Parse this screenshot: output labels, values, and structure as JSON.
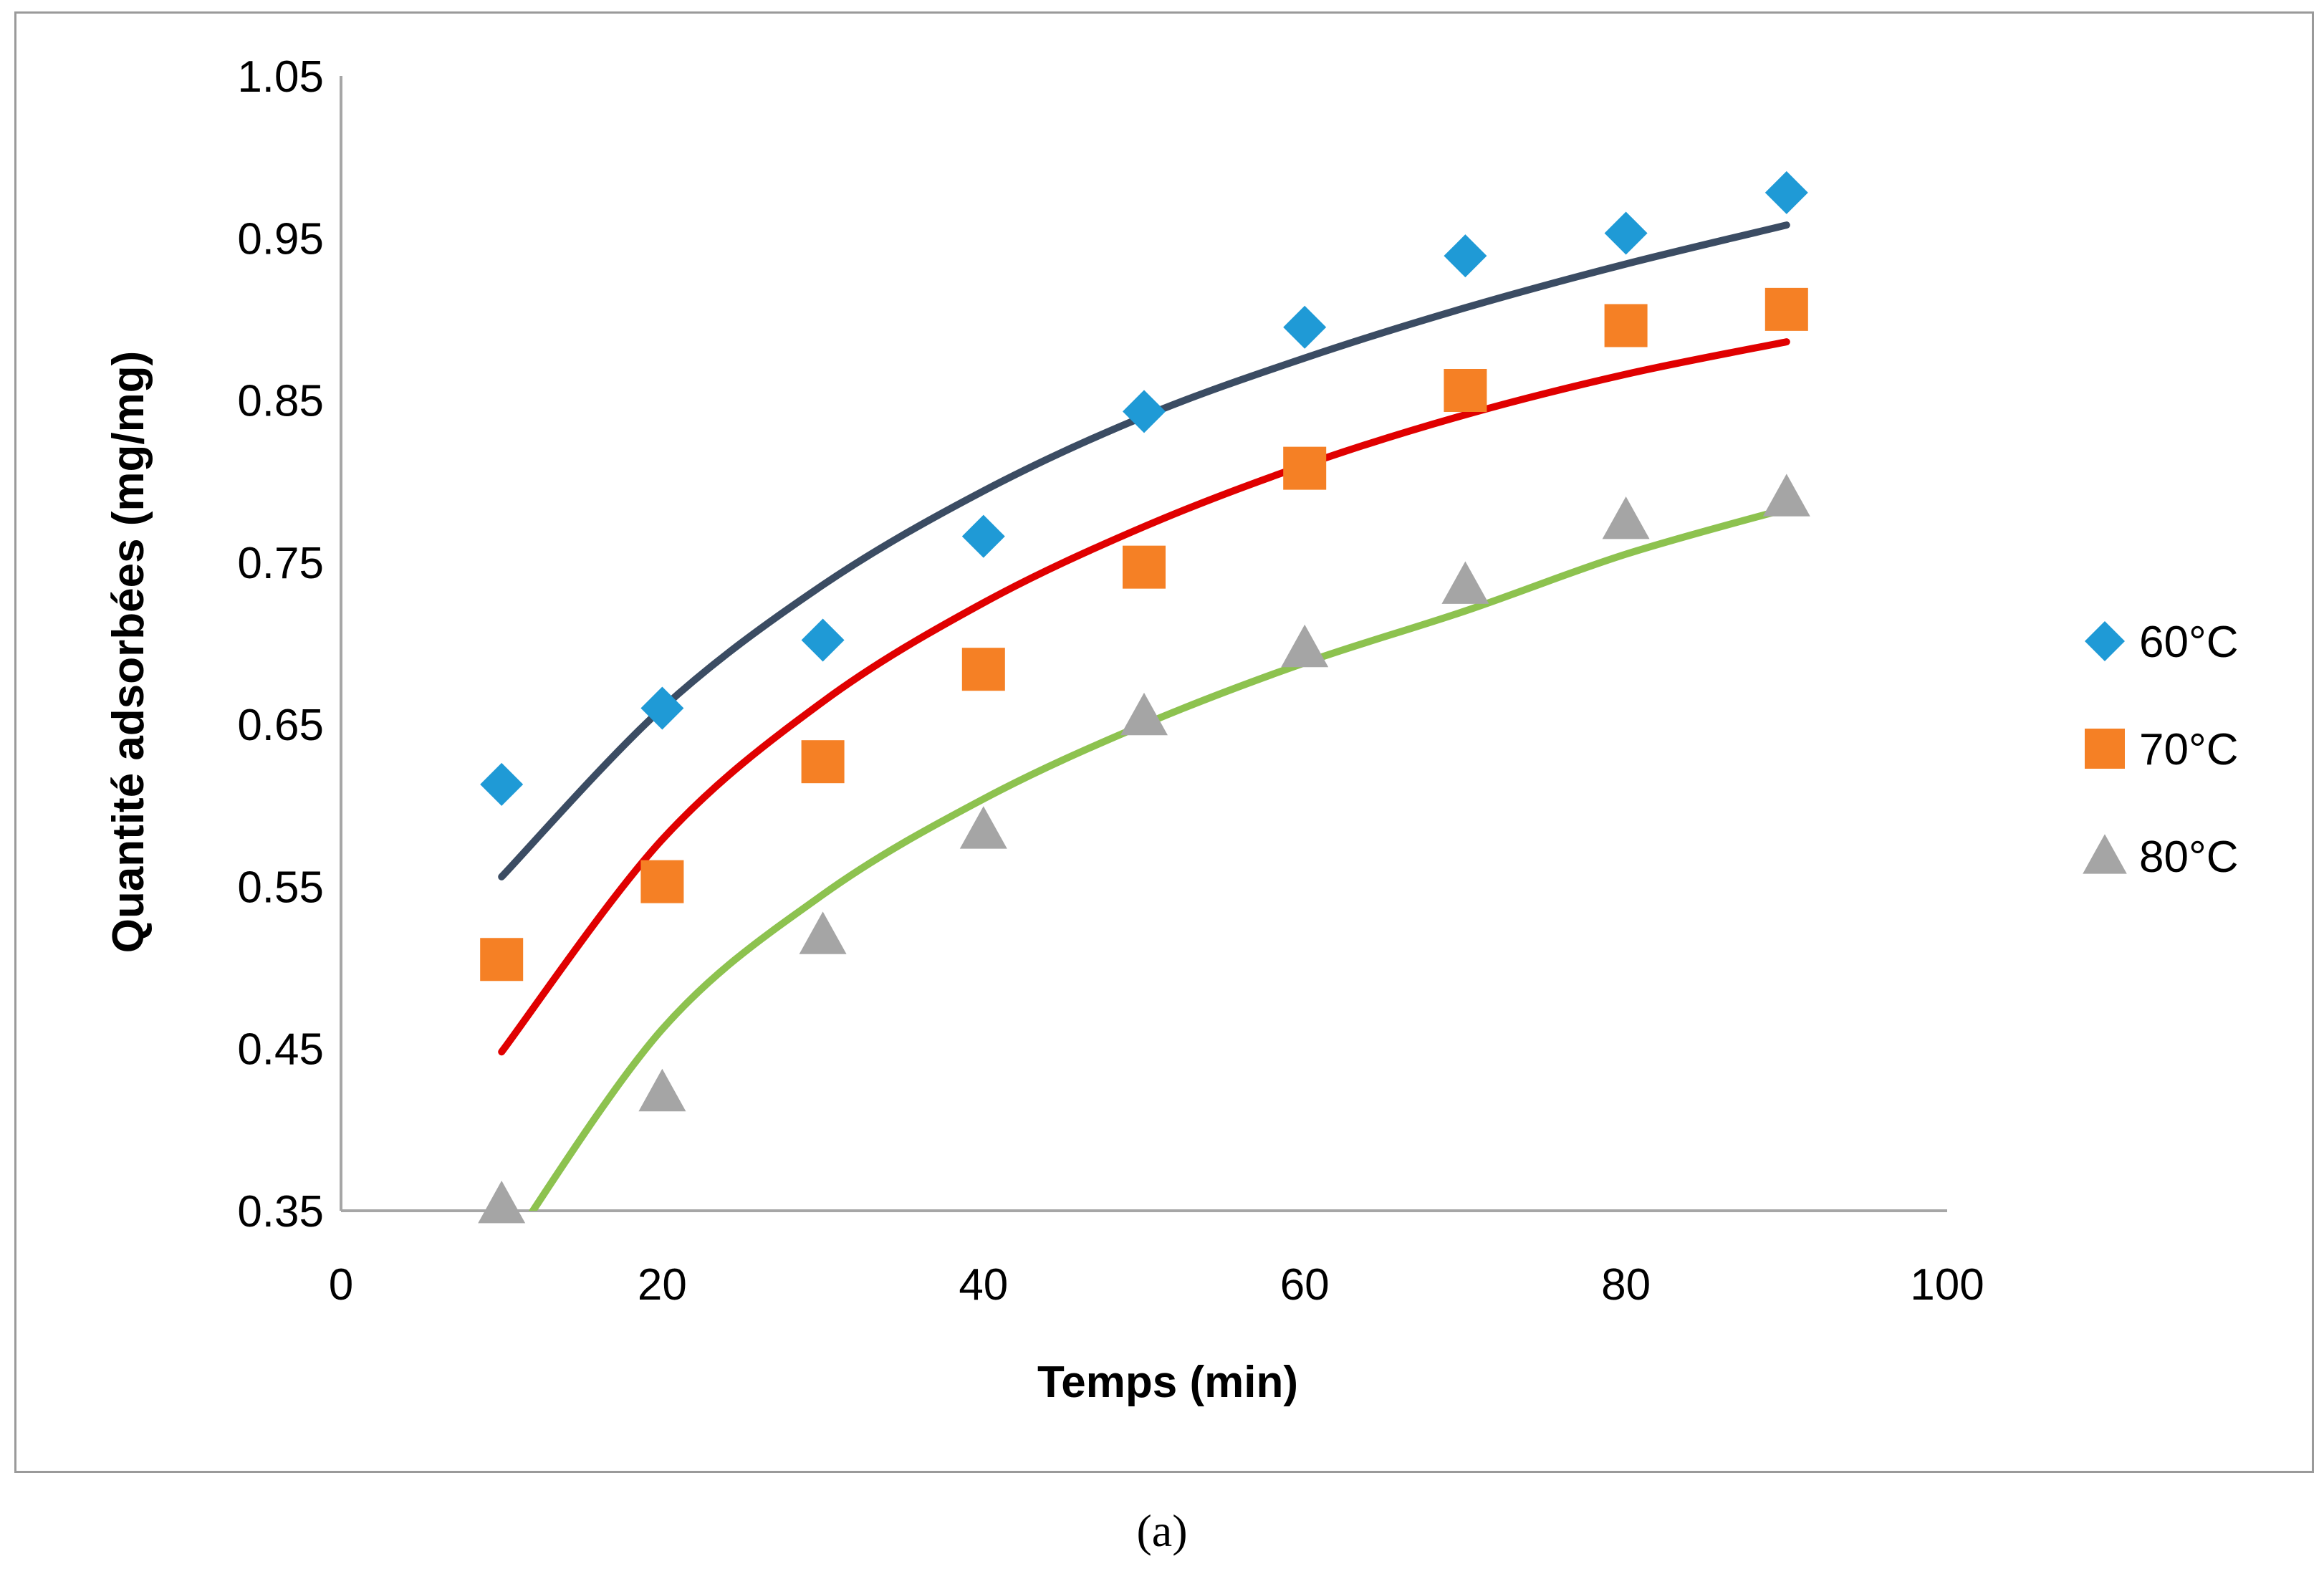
{
  "chart_data": {
    "type": "scatter",
    "title": "",
    "xlabel": "Temps (min)",
    "ylabel": "Quantité adsorbées (mg/mg)",
    "xlim": [
      0,
      100
    ],
    "ylim": [
      0.35,
      1.05
    ],
    "xticks": [
      "0",
      "20",
      "40",
      "60",
      "80",
      "100"
    ],
    "yticks": [
      "0.35",
      "0.45",
      "0.55",
      "0.65",
      "0.75",
      "0.85",
      "0.95",
      "1.05"
    ],
    "grid": false,
    "legend_position": "right",
    "series": [
      {
        "name": "60°C",
        "marker": "diamond",
        "color": "#1f9ad6",
        "trend_color": "#3b4c63",
        "x": [
          10,
          20,
          30,
          40,
          50,
          60,
          70,
          80,
          90
        ],
        "y": [
          0.613,
          0.66,
          0.702,
          0.766,
          0.843,
          0.895,
          0.939,
          0.953,
          0.978
        ],
        "trend": [
          0.556,
          0.66,
          0.736,
          0.794,
          0.84,
          0.876,
          0.907,
          0.934,
          0.958
        ]
      },
      {
        "name": "70°C",
        "marker": "square",
        "color": "#f58025",
        "trend_color": "#e00000",
        "x": [
          10,
          20,
          30,
          40,
          50,
          60,
          70,
          80,
          90
        ],
        "y": [
          0.505,
          0.553,
          0.627,
          0.684,
          0.747,
          0.808,
          0.856,
          0.896,
          0.906
        ],
        "trend": [
          0.448,
          0.579,
          0.664,
          0.725,
          0.772,
          0.81,
          0.841,
          0.866,
          0.886
        ]
      },
      {
        "name": "80°C",
        "marker": "triangle",
        "color": "#a5a5a5",
        "trend_color": "#8dc24f",
        "x": [
          10,
          20,
          30,
          40,
          50,
          60,
          70,
          80,
          90
        ],
        "y": [
          0.354,
          0.423,
          0.52,
          0.585,
          0.655,
          0.697,
          0.736,
          0.776,
          0.79
        ],
        "trend": [
          0.321,
          0.462,
          0.545,
          0.604,
          0.65,
          0.688,
          0.72,
          0.755,
          0.783
        ]
      }
    ]
  },
  "caption": "(a)"
}
